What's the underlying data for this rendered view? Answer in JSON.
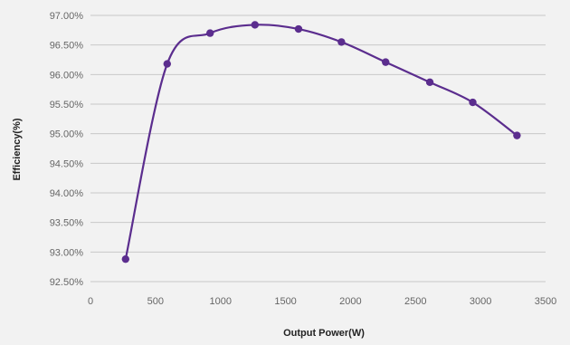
{
  "chart_data": {
    "type": "line",
    "title": "",
    "xlabel": "Output Power(W)",
    "ylabel": "Efficiency(%)",
    "xlim": [
      0,
      3500
    ],
    "ylim": [
      92.5,
      97.0
    ],
    "x_ticks": [
      0,
      500,
      1000,
      1500,
      2000,
      2500,
      3000,
      3500
    ],
    "y_ticks": [
      92.5,
      93.0,
      93.5,
      94.0,
      94.5,
      95.0,
      95.5,
      96.0,
      96.5,
      97.0
    ],
    "y_tick_labels": [
      "92.50%",
      "93.00%",
      "93.50%",
      "94.00%",
      "94.50%",
      "95.00%",
      "95.50%",
      "96.00%",
      "96.50%",
      "97.00%"
    ],
    "grid": "horizontal",
    "colors": {
      "series": "#5b2d8e",
      "grid": "#c8c8c8",
      "background": "#f2f2f2"
    },
    "series": [
      {
        "x": [
          270,
          590,
          920,
          1265,
          1600,
          1930,
          2270,
          2610,
          2940,
          3280
        ],
        "y": [
          92.88,
          96.18,
          96.7,
          96.84,
          96.77,
          96.55,
          96.21,
          95.87,
          95.53,
          94.97
        ]
      }
    ]
  }
}
